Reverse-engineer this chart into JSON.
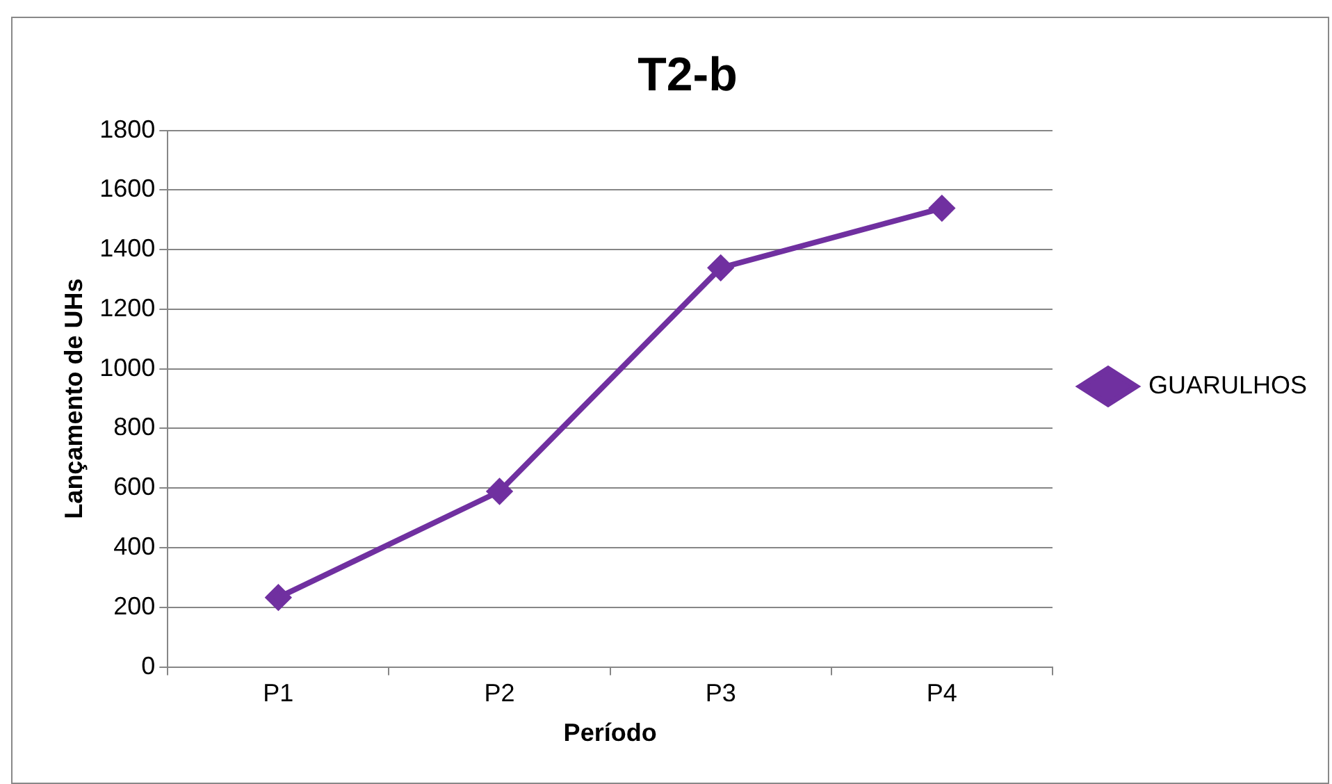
{
  "chart_data": {
    "type": "line",
    "title": "T2-b",
    "xlabel": "Período",
    "ylabel": "Lançamento de UHs",
    "categories": [
      "P1",
      "P2",
      "P3",
      "P4"
    ],
    "series": [
      {
        "name": "GUARULHOS",
        "color": "#7030a0",
        "values": [
          233,
          589,
          1339,
          1539
        ]
      }
    ],
    "ylim": [
      0,
      1800
    ],
    "yticks": [
      0,
      200,
      400,
      600,
      800,
      1000,
      1200,
      1400,
      1600,
      1800
    ],
    "grid": "y",
    "legend": "right",
    "marker": "diamond",
    "line_style": "solid"
  }
}
